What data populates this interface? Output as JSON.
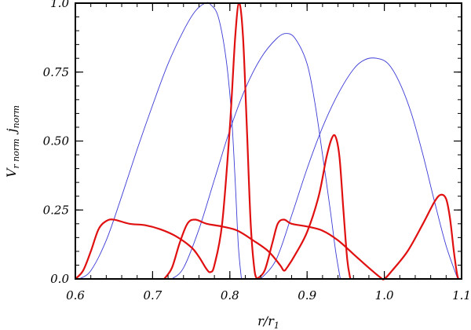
{
  "chart_data": {
    "type": "line",
    "xlabel": "r/r1",
    "xlabel_main": "r/r",
    "xlabel_sub": "1",
    "ylabel": "V_r norm  j_norm",
    "ylabel_v": "V",
    "ylabel_v_sub": "r norm",
    "ylabel_j": "j",
    "ylabel_j_sub": "norm",
    "xlim": [
      0.6,
      1.1
    ],
    "ylim": [
      0.0,
      1.0
    ],
    "x_ticks": [
      0.6,
      0.7,
      0.8,
      0.9,
      1.0,
      1.1
    ],
    "x_tick_labels": [
      "0.6",
      "0.7",
      "0.8",
      "0.9",
      "1.0",
      "1.1"
    ],
    "y_ticks": [
      0.0,
      0.25,
      0.5,
      0.75,
      1.0
    ],
    "y_tick_labels": [
      "0.0",
      "0.25",
      "0.50",
      "0.75",
      "1.0"
    ],
    "grid": false,
    "colors": {
      "blue": "#3b3bd6",
      "red": "#e01010"
    },
    "series": [
      {
        "color": "blue",
        "points": [
          [
            0.605,
            0
          ],
          [
            0.62,
            0.03
          ],
          [
            0.64,
            0.14
          ],
          [
            0.66,
            0.3
          ],
          [
            0.68,
            0.47
          ],
          [
            0.7,
            0.63
          ],
          [
            0.72,
            0.78
          ],
          [
            0.74,
            0.9
          ],
          [
            0.755,
            0.97
          ],
          [
            0.768,
            1.0
          ],
          [
            0.775,
            0.995
          ],
          [
            0.785,
            0.95
          ],
          [
            0.795,
            0.8
          ],
          [
            0.802,
            0.6
          ],
          [
            0.807,
            0.35
          ],
          [
            0.811,
            0.12
          ],
          [
            0.815,
            0.0
          ]
        ]
      },
      {
        "color": "blue",
        "points": [
          [
            0.725,
            0
          ],
          [
            0.74,
            0.04
          ],
          [
            0.76,
            0.18
          ],
          [
            0.78,
            0.36
          ],
          [
            0.8,
            0.54
          ],
          [
            0.82,
            0.69
          ],
          [
            0.84,
            0.8
          ],
          [
            0.86,
            0.87
          ],
          [
            0.873,
            0.89
          ],
          [
            0.885,
            0.87
          ],
          [
            0.9,
            0.78
          ],
          [
            0.91,
            0.64
          ],
          [
            0.92,
            0.45
          ],
          [
            0.93,
            0.25
          ],
          [
            0.937,
            0.1
          ],
          [
            0.943,
            0.0
          ]
        ]
      },
      {
        "color": "blue",
        "points": [
          [
            0.84,
            0
          ],
          [
            0.86,
            0.07
          ],
          [
            0.88,
            0.23
          ],
          [
            0.9,
            0.4
          ],
          [
            0.92,
            0.55
          ],
          [
            0.94,
            0.67
          ],
          [
            0.96,
            0.76
          ],
          [
            0.975,
            0.795
          ],
          [
            0.99,
            0.8
          ],
          [
            1.005,
            0.78
          ],
          [
            1.02,
            0.71
          ],
          [
            1.035,
            0.6
          ],
          [
            1.05,
            0.45
          ],
          [
            1.065,
            0.28
          ],
          [
            1.08,
            0.12
          ],
          [
            1.095,
            0.0
          ]
        ]
      },
      {
        "color": "red",
        "points": [
          [
            0.6,
            0
          ],
          [
            0.61,
            0.03
          ],
          [
            0.62,
            0.1
          ],
          [
            0.63,
            0.18
          ],
          [
            0.64,
            0.21
          ],
          [
            0.65,
            0.215
          ],
          [
            0.67,
            0.2
          ],
          [
            0.69,
            0.195
          ],
          [
            0.71,
            0.18
          ],
          [
            0.73,
            0.155
          ],
          [
            0.75,
            0.115
          ],
          [
            0.76,
            0.08
          ],
          [
            0.77,
            0.035
          ],
          [
            0.775,
            0.025
          ],
          [
            0.78,
            0.05
          ],
          [
            0.79,
            0.2
          ],
          [
            0.8,
            0.55
          ],
          [
            0.807,
            0.88
          ],
          [
            0.812,
            1.0
          ],
          [
            0.817,
            0.88
          ],
          [
            0.822,
            0.55
          ],
          [
            0.827,
            0.2
          ],
          [
            0.832,
            0.03
          ],
          [
            0.836,
            0.0
          ]
        ]
      },
      {
        "color": "red",
        "points": [
          [
            0.715,
            0
          ],
          [
            0.725,
            0.04
          ],
          [
            0.735,
            0.13
          ],
          [
            0.745,
            0.2
          ],
          [
            0.755,
            0.215
          ],
          [
            0.77,
            0.2
          ],
          [
            0.79,
            0.19
          ],
          [
            0.81,
            0.175
          ],
          [
            0.83,
            0.14
          ],
          [
            0.85,
            0.1
          ],
          [
            0.865,
            0.05
          ],
          [
            0.87,
            0.03
          ],
          [
            0.875,
            0.045
          ],
          [
            0.885,
            0.09
          ],
          [
            0.9,
            0.17
          ],
          [
            0.915,
            0.3
          ],
          [
            0.925,
            0.44
          ],
          [
            0.932,
            0.51
          ],
          [
            0.937,
            0.515
          ],
          [
            0.942,
            0.44
          ],
          [
            0.947,
            0.25
          ],
          [
            0.952,
            0.07
          ],
          [
            0.956,
            0.0
          ]
        ]
      },
      {
        "color": "red",
        "points": [
          [
            0.835,
            0
          ],
          [
            0.845,
            0.03
          ],
          [
            0.855,
            0.13
          ],
          [
            0.862,
            0.2
          ],
          [
            0.87,
            0.215
          ],
          [
            0.88,
            0.2
          ],
          [
            0.9,
            0.19
          ],
          [
            0.92,
            0.175
          ],
          [
            0.94,
            0.14
          ],
          [
            0.96,
            0.09
          ],
          [
            0.98,
            0.04
          ],
          [
            0.995,
            0.005
          ],
          [
            1.0,
            0.0
          ],
          [
            1.01,
            0.03
          ],
          [
            1.03,
            0.1
          ],
          [
            1.05,
            0.2
          ],
          [
            1.065,
            0.28
          ],
          [
            1.073,
            0.305
          ],
          [
            1.08,
            0.29
          ],
          [
            1.085,
            0.22
          ],
          [
            1.09,
            0.1
          ],
          [
            1.094,
            0.02
          ],
          [
            1.096,
            0.0
          ]
        ]
      }
    ]
  }
}
